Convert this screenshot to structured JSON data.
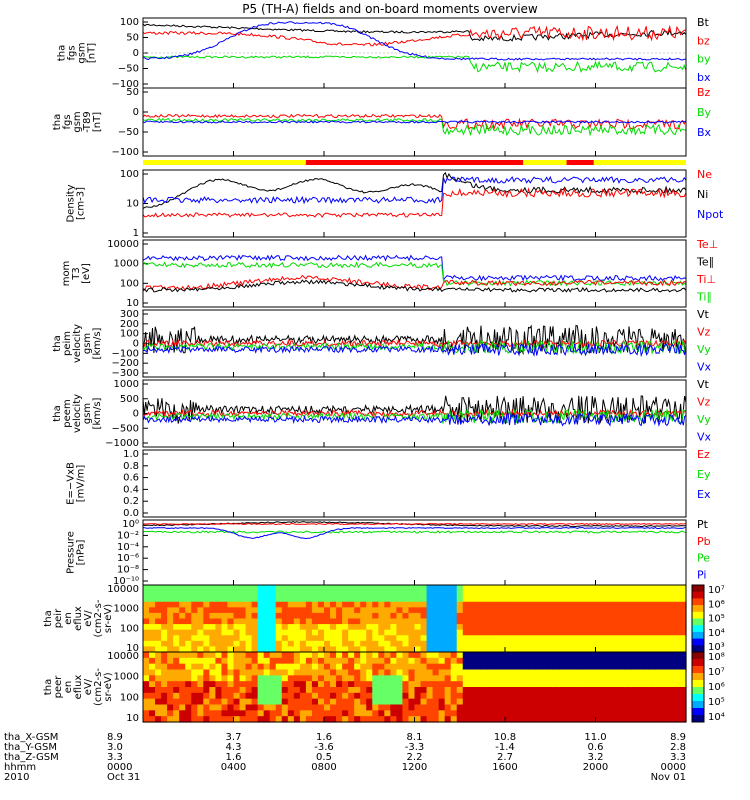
{
  "title": "P5 (TH-A) fields and on-board moments overview",
  "colors": {
    "black": "#000000",
    "red": "#ff0000",
    "green": "#00dd00",
    "blue": "#0000ff",
    "yellow": "#ffff00"
  },
  "chart_data": [
    {
      "type": "line",
      "ylabel": [
        "tha",
        "fgs",
        "gsm",
        "[nT]"
      ],
      "ylim": [
        -100,
        100
      ],
      "yticks": [
        "100",
        "50",
        "0",
        "−50",
        "−100"
      ],
      "series": [
        {
          "name": "Bt",
          "color": "#000000"
        },
        {
          "name": "bz",
          "color": "#ff0000"
        },
        {
          "name": "by",
          "color": "#00dd00"
        },
        {
          "name": "bx",
          "color": "#0000ff"
        }
      ]
    },
    {
      "type": "line",
      "ylabel": [
        "tha",
        "fgs",
        "gsm",
        "-T89",
        "[nT]"
      ],
      "ylim": [
        -120,
        60
      ],
      "yticks": [
        "50",
        "0",
        "−50",
        "−100"
      ],
      "series": [
        {
          "name": "Bz",
          "color": "#ff0000"
        },
        {
          "name": "By",
          "color": "#00dd00"
        },
        {
          "name": "Bx",
          "color": "#0000ff"
        }
      ]
    },
    {
      "type": "line",
      "ylabel": [
        "Density",
        "[cm-3]"
      ],
      "yscale": "log",
      "ylim": [
        0.5,
        200
      ],
      "yticks": [
        "100",
        "10",
        "1"
      ],
      "series": [
        {
          "name": "Ne",
          "color": "#ff0000"
        },
        {
          "name": "Ni",
          "color": "#000000"
        },
        {
          "name": "Npot",
          "color": "#0000ff"
        }
      ]
    },
    {
      "type": "line",
      "ylabel": [
        "mom",
        "T3",
        "[eV]"
      ],
      "yscale": "log",
      "ylim": [
        10,
        30000
      ],
      "yticks": [
        "10000",
        "1000",
        "100",
        "10"
      ],
      "series": [
        {
          "name": "Te⊥",
          "color": "#ff0000"
        },
        {
          "name": "Te∥",
          "color": "#000000"
        },
        {
          "name": "Ti⊥",
          "color": "#ff0000"
        },
        {
          "name": "Ti∥",
          "color": "#00dd00"
        }
      ]
    },
    {
      "type": "line",
      "ylabel": [
        "tha",
        "peim",
        "velocity",
        "gsm",
        "[km/s]"
      ],
      "ylim": [
        -300,
        300
      ],
      "yticks": [
        "300",
        "200",
        "100",
        "0",
        "−100",
        "−200",
        "−300"
      ],
      "series": [
        {
          "name": "Vt",
          "color": "#000000"
        },
        {
          "name": "Vz",
          "color": "#ff0000"
        },
        {
          "name": "Vy",
          "color": "#00dd00"
        },
        {
          "name": "Vx",
          "color": "#0000ff"
        }
      ]
    },
    {
      "type": "line",
      "ylabel": [
        "tha",
        "peem",
        "velocity",
        "gsm",
        "[km/s]"
      ],
      "ylim": [
        -1000,
        1000
      ],
      "yticks": [
        "1000",
        "500",
        "0",
        "−500",
        "−1000"
      ],
      "series": [
        {
          "name": "Vt",
          "color": "#000000"
        },
        {
          "name": "Vz",
          "color": "#ff0000"
        },
        {
          "name": "Vy",
          "color": "#00dd00"
        },
        {
          "name": "Vx",
          "color": "#0000ff"
        }
      ]
    },
    {
      "type": "line",
      "ylabel": [
        "E=−VxB",
        "[mV/m]"
      ],
      "ylim": [
        0,
        1
      ],
      "yticks": [
        "1.0",
        "0.8",
        "0.6",
        "0.4",
        "0.2",
        "0.0"
      ],
      "series": [
        {
          "name": "Ez",
          "color": "#ff0000"
        },
        {
          "name": "Ey",
          "color": "#00dd00"
        },
        {
          "name": "Ex",
          "color": "#0000ff"
        }
      ]
    },
    {
      "type": "line",
      "ylabel": [
        "Pressure",
        "[nPa]"
      ],
      "yscale": "log",
      "yticks": [
        "10⁰",
        "10⁻²",
        "10⁻⁴",
        "10⁻⁶",
        "10⁻⁸",
        "10⁻¹⁰"
      ],
      "series": [
        {
          "name": "Pt",
          "color": "#000000"
        },
        {
          "name": "Pb",
          "color": "#ff0000"
        },
        {
          "name": "Pe",
          "color": "#00dd00"
        },
        {
          "name": "Pi",
          "color": "#0000ff"
        }
      ]
    },
    {
      "type": "heatmap",
      "ylabel": [
        "tha",
        "peir",
        "en",
        "eflux",
        "eV/",
        "(cm2-s-",
        "sr-eV)"
      ],
      "yscale": "log",
      "yticks": [
        "10000",
        "1000",
        "100",
        "10"
      ],
      "colorbar": [
        "10⁷",
        "10⁶",
        "10⁵",
        "10⁴",
        "10³"
      ]
    },
    {
      "type": "heatmap",
      "ylabel": [
        "tha",
        "peer",
        "en",
        "eflux",
        "eV/",
        "(cm2-s-",
        "sr-eV)"
      ],
      "yscale": "log",
      "yticks": [
        "10000",
        "1000",
        "100",
        "10"
      ],
      "colorbar": [
        "10⁸",
        "10⁷",
        "10⁶",
        "10⁵",
        "10⁴"
      ]
    }
  ],
  "xaxis": {
    "row_labels": [
      "tha_X-GSM",
      "tha_Y-GSM",
      "tha_Z-GSM",
      "hhmm",
      "2010"
    ],
    "columns": [
      [
        "8.9",
        "3.0",
        "3.3",
        "0000",
        "Oct 31"
      ],
      [
        "3.7",
        "4.3",
        "1.6",
        "0400",
        ""
      ],
      [
        "1.6",
        "-3.6",
        "0.5",
        "0800",
        ""
      ],
      [
        "8.1",
        "-3.3",
        "2.2",
        "1200",
        ""
      ],
      [
        "10.8",
        "-1.4",
        "2.7",
        "1600",
        ""
      ],
      [
        "11.0",
        "0.6",
        "3.2",
        "2000",
        ""
      ],
      [
        "8.9",
        "2.8",
        "3.3",
        "0000",
        "Nov 01"
      ]
    ]
  }
}
